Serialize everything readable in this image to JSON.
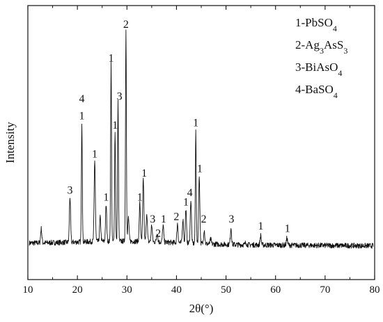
{
  "chart_data": {
    "type": "line",
    "title": "",
    "xlabel": "2θ(°)",
    "ylabel": "Intensity",
    "xlim": [
      10,
      80
    ],
    "xticks": [
      10,
      20,
      30,
      40,
      50,
      60,
      70,
      80
    ],
    "y_ticks_shown": false,
    "grid": false,
    "legend_position": "top-right",
    "legend": [
      {
        "main": "1-PbSO",
        "sub": "4",
        "tail": ""
      },
      {
        "main": "2-Ag",
        "sub": "3",
        "tail": "AsS",
        "sub2": "3"
      },
      {
        "main": "3-BiAsO",
        "sub": "4",
        "tail": ""
      },
      {
        "main": "4-BaSO",
        "sub": "4",
        "tail": ""
      }
    ],
    "baseline": 0.12,
    "series": [
      {
        "peaks": [
          {
            "x": 12.7,
            "y": 0.18
          },
          {
            "x": 18.5,
            "y": 0.31
          },
          {
            "x": 20.9,
            "y": 0.62
          },
          {
            "x": 23.5,
            "y": 0.46
          },
          {
            "x": 24.6,
            "y": 0.22
          },
          {
            "x": 25.8,
            "y": 0.27
          },
          {
            "x": 26.8,
            "y": 0.86
          },
          {
            "x": 27.6,
            "y": 0.58
          },
          {
            "x": 28.2,
            "y": 0.7
          },
          {
            "x": 29.8,
            "y": 1.0
          },
          {
            "x": 30.3,
            "y": 0.22
          },
          {
            "x": 32.6,
            "y": 0.28
          },
          {
            "x": 33.3,
            "y": 0.38
          },
          {
            "x": 34.0,
            "y": 0.24
          },
          {
            "x": 35.0,
            "y": 0.19
          },
          {
            "x": 36.1,
            "y": 0.16
          },
          {
            "x": 37.3,
            "y": 0.19
          },
          {
            "x": 40.2,
            "y": 0.2
          },
          {
            "x": 41.3,
            "y": 0.22
          },
          {
            "x": 41.9,
            "y": 0.26
          },
          {
            "x": 42.9,
            "y": 0.3
          },
          {
            "x": 43.9,
            "y": 0.59
          },
          {
            "x": 44.6,
            "y": 0.4
          },
          {
            "x": 45.6,
            "y": 0.18
          },
          {
            "x": 46.9,
            "y": 0.14
          },
          {
            "x": 51.0,
            "y": 0.19
          },
          {
            "x": 54.0,
            "y": 0.13
          },
          {
            "x": 57.0,
            "y": 0.16
          },
          {
            "x": 62.3,
            "y": 0.15
          }
        ]
      }
    ],
    "annotations": [
      {
        "text": "3",
        "x": 18.5,
        "y": 0.31
      },
      {
        "text": "4",
        "x": 20.9,
        "y": 0.69
      },
      {
        "text": "1",
        "x": 20.9,
        "y": 0.62
      },
      {
        "text": "1",
        "x": 23.5,
        "y": 0.46
      },
      {
        "text": "1",
        "x": 25.8,
        "y": 0.28
      },
      {
        "text": "1",
        "x": 26.8,
        "y": 0.86
      },
      {
        "text": "1",
        "x": 27.6,
        "y": 0.58
      },
      {
        "text": "3",
        "x": 28.5,
        "y": 0.7
      },
      {
        "text": "2",
        "x": 29.8,
        "y": 1.0
      },
      {
        "text": "1",
        "x": 32.6,
        "y": 0.28
      },
      {
        "text": "1",
        "x": 33.5,
        "y": 0.38
      },
      {
        "text": "3",
        "x": 35.2,
        "y": 0.19
      },
      {
        "text": "2",
        "x": 36.3,
        "y": 0.13
      },
      {
        "text": "1",
        "x": 37.4,
        "y": 0.19
      },
      {
        "text": "2",
        "x": 40.0,
        "y": 0.2
      },
      {
        "text": "1",
        "x": 41.9,
        "y": 0.26
      },
      {
        "text": "4",
        "x": 42.7,
        "y": 0.3
      },
      {
        "text": "1",
        "x": 43.9,
        "y": 0.59
      },
      {
        "text": "1",
        "x": 44.7,
        "y": 0.4
      },
      {
        "text": "2",
        "x": 45.5,
        "y": 0.19
      },
      {
        "text": "3",
        "x": 51.1,
        "y": 0.19
      },
      {
        "text": "1",
        "x": 57.0,
        "y": 0.16
      },
      {
        "text": "1",
        "x": 62.4,
        "y": 0.15
      }
    ]
  }
}
